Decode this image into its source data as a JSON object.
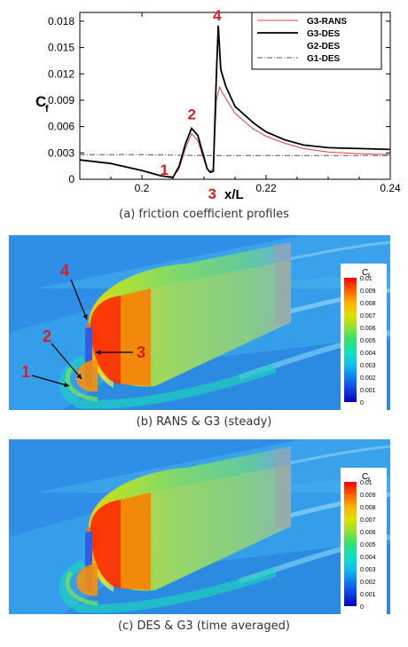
{
  "chart_data": {
    "type": "line",
    "ylabel": "C",
    "ylabel_sub": "f",
    "xlabel": "x/L",
    "xlim": [
      0.19,
      0.24
    ],
    "ylim": [
      0,
      0.019
    ],
    "xticks": [
      0.2,
      0.22,
      0.24
    ],
    "yticks": [
      0,
      0.003,
      0.006,
      0.009,
      0.012,
      0.015,
      0.018
    ],
    "ytick_labels": [
      "0",
      "0.003",
      "0.006",
      "0.009",
      "0.012",
      "0.015",
      "0.018"
    ],
    "xtick_labels": [
      "0.2",
      "0.22",
      "0.24"
    ],
    "legend_position": "top-right",
    "series": [
      {
        "name": "G3-RANS",
        "color": "#e04040",
        "dash": "solid",
        "x": [
          0.19,
          0.195,
          0.2,
          0.203,
          0.205,
          0.206,
          0.207,
          0.208,
          0.209,
          0.21,
          0.2105,
          0.211,
          0.2115,
          0.212,
          0.2125,
          0.213,
          0.215,
          0.218,
          0.22,
          0.223,
          0.226,
          0.23,
          0.235,
          0.24
        ],
        "y": [
          0.0022,
          0.0018,
          0.001,
          0.0004,
          0.0003,
          0.0012,
          0.0035,
          0.0052,
          0.0044,
          0.0022,
          0.0012,
          0.0009,
          0.0012,
          0.009,
          0.0105,
          0.0098,
          0.0075,
          0.0057,
          0.0049,
          0.0041,
          0.0035,
          0.0031,
          0.0029,
          0.0028
        ]
      },
      {
        "name": "G3-DES",
        "color": "#000000",
        "dash": "solid",
        "x": [
          0.19,
          0.195,
          0.2,
          0.203,
          0.205,
          0.206,
          0.207,
          0.208,
          0.209,
          0.21,
          0.2105,
          0.211,
          0.2115,
          0.212,
          0.2123,
          0.2127,
          0.2135,
          0.215,
          0.218,
          0.22,
          0.223,
          0.226,
          0.23,
          0.235,
          0.24
        ],
        "y": [
          0.0022,
          0.0018,
          0.001,
          0.0004,
          0.0002,
          0.0015,
          0.004,
          0.0058,
          0.005,
          0.0025,
          0.0012,
          0.0008,
          0.0009,
          0.012,
          0.0175,
          0.0125,
          0.0106,
          0.0083,
          0.0064,
          0.0054,
          0.0045,
          0.0039,
          0.0036,
          0.0035,
          0.0034
        ]
      },
      {
        "name": "G2-DES",
        "color": "#000000",
        "dash": "none",
        "x": [],
        "y": []
      },
      {
        "name": "G1-DES",
        "color": "#555555",
        "dash": "dashdot",
        "x": [
          0.19,
          0.2,
          0.21,
          0.22,
          0.23,
          0.24
        ],
        "y": [
          0.0028,
          0.0028,
          0.0027,
          0.0027,
          0.0027,
          0.0027
        ]
      }
    ],
    "annotations": [
      {
        "text": "1",
        "x": 0.2055,
        "y": 0.0003
      },
      {
        "text": "2",
        "x": 0.2085,
        "y": 0.0058
      },
      {
        "text": "3",
        "x": 0.2115,
        "y": 0.0
      },
      {
        "text": "4",
        "x": 0.2123,
        "y": 0.0175
      }
    ]
  },
  "captions": {
    "a": "(a)  friction coefficient profiles",
    "b": "(b)  RANS & G3 (steady)",
    "c": "(c)  DES & G3 (time averaged)"
  },
  "contour_b": {
    "title": "C",
    "title_sub": "f",
    "labels": [
      "0.01",
      "0.009",
      "0.008",
      "0.007",
      "0.006",
      "0.005",
      "0.004",
      "0.003",
      "0.002",
      "0.001",
      "0"
    ],
    "markers": [
      "1",
      "2",
      "3",
      "4"
    ]
  },
  "contour_c": {
    "title": "C",
    "title_sub": "f",
    "labels": [
      "0.01",
      "0.009",
      "0.008",
      "0.007",
      "0.006",
      "0.005",
      "0.004",
      "0.003",
      "0.002",
      "0.001",
      "0"
    ]
  },
  "colors": {
    "marker": "#d42020",
    "colormap": [
      "#ff0000",
      "#ff6000",
      "#ffb000",
      "#e0e000",
      "#90e030",
      "#30e070",
      "#10e0c0",
      "#10c0f0",
      "#1080f0",
      "#1040e0",
      "#0000c0"
    ]
  }
}
